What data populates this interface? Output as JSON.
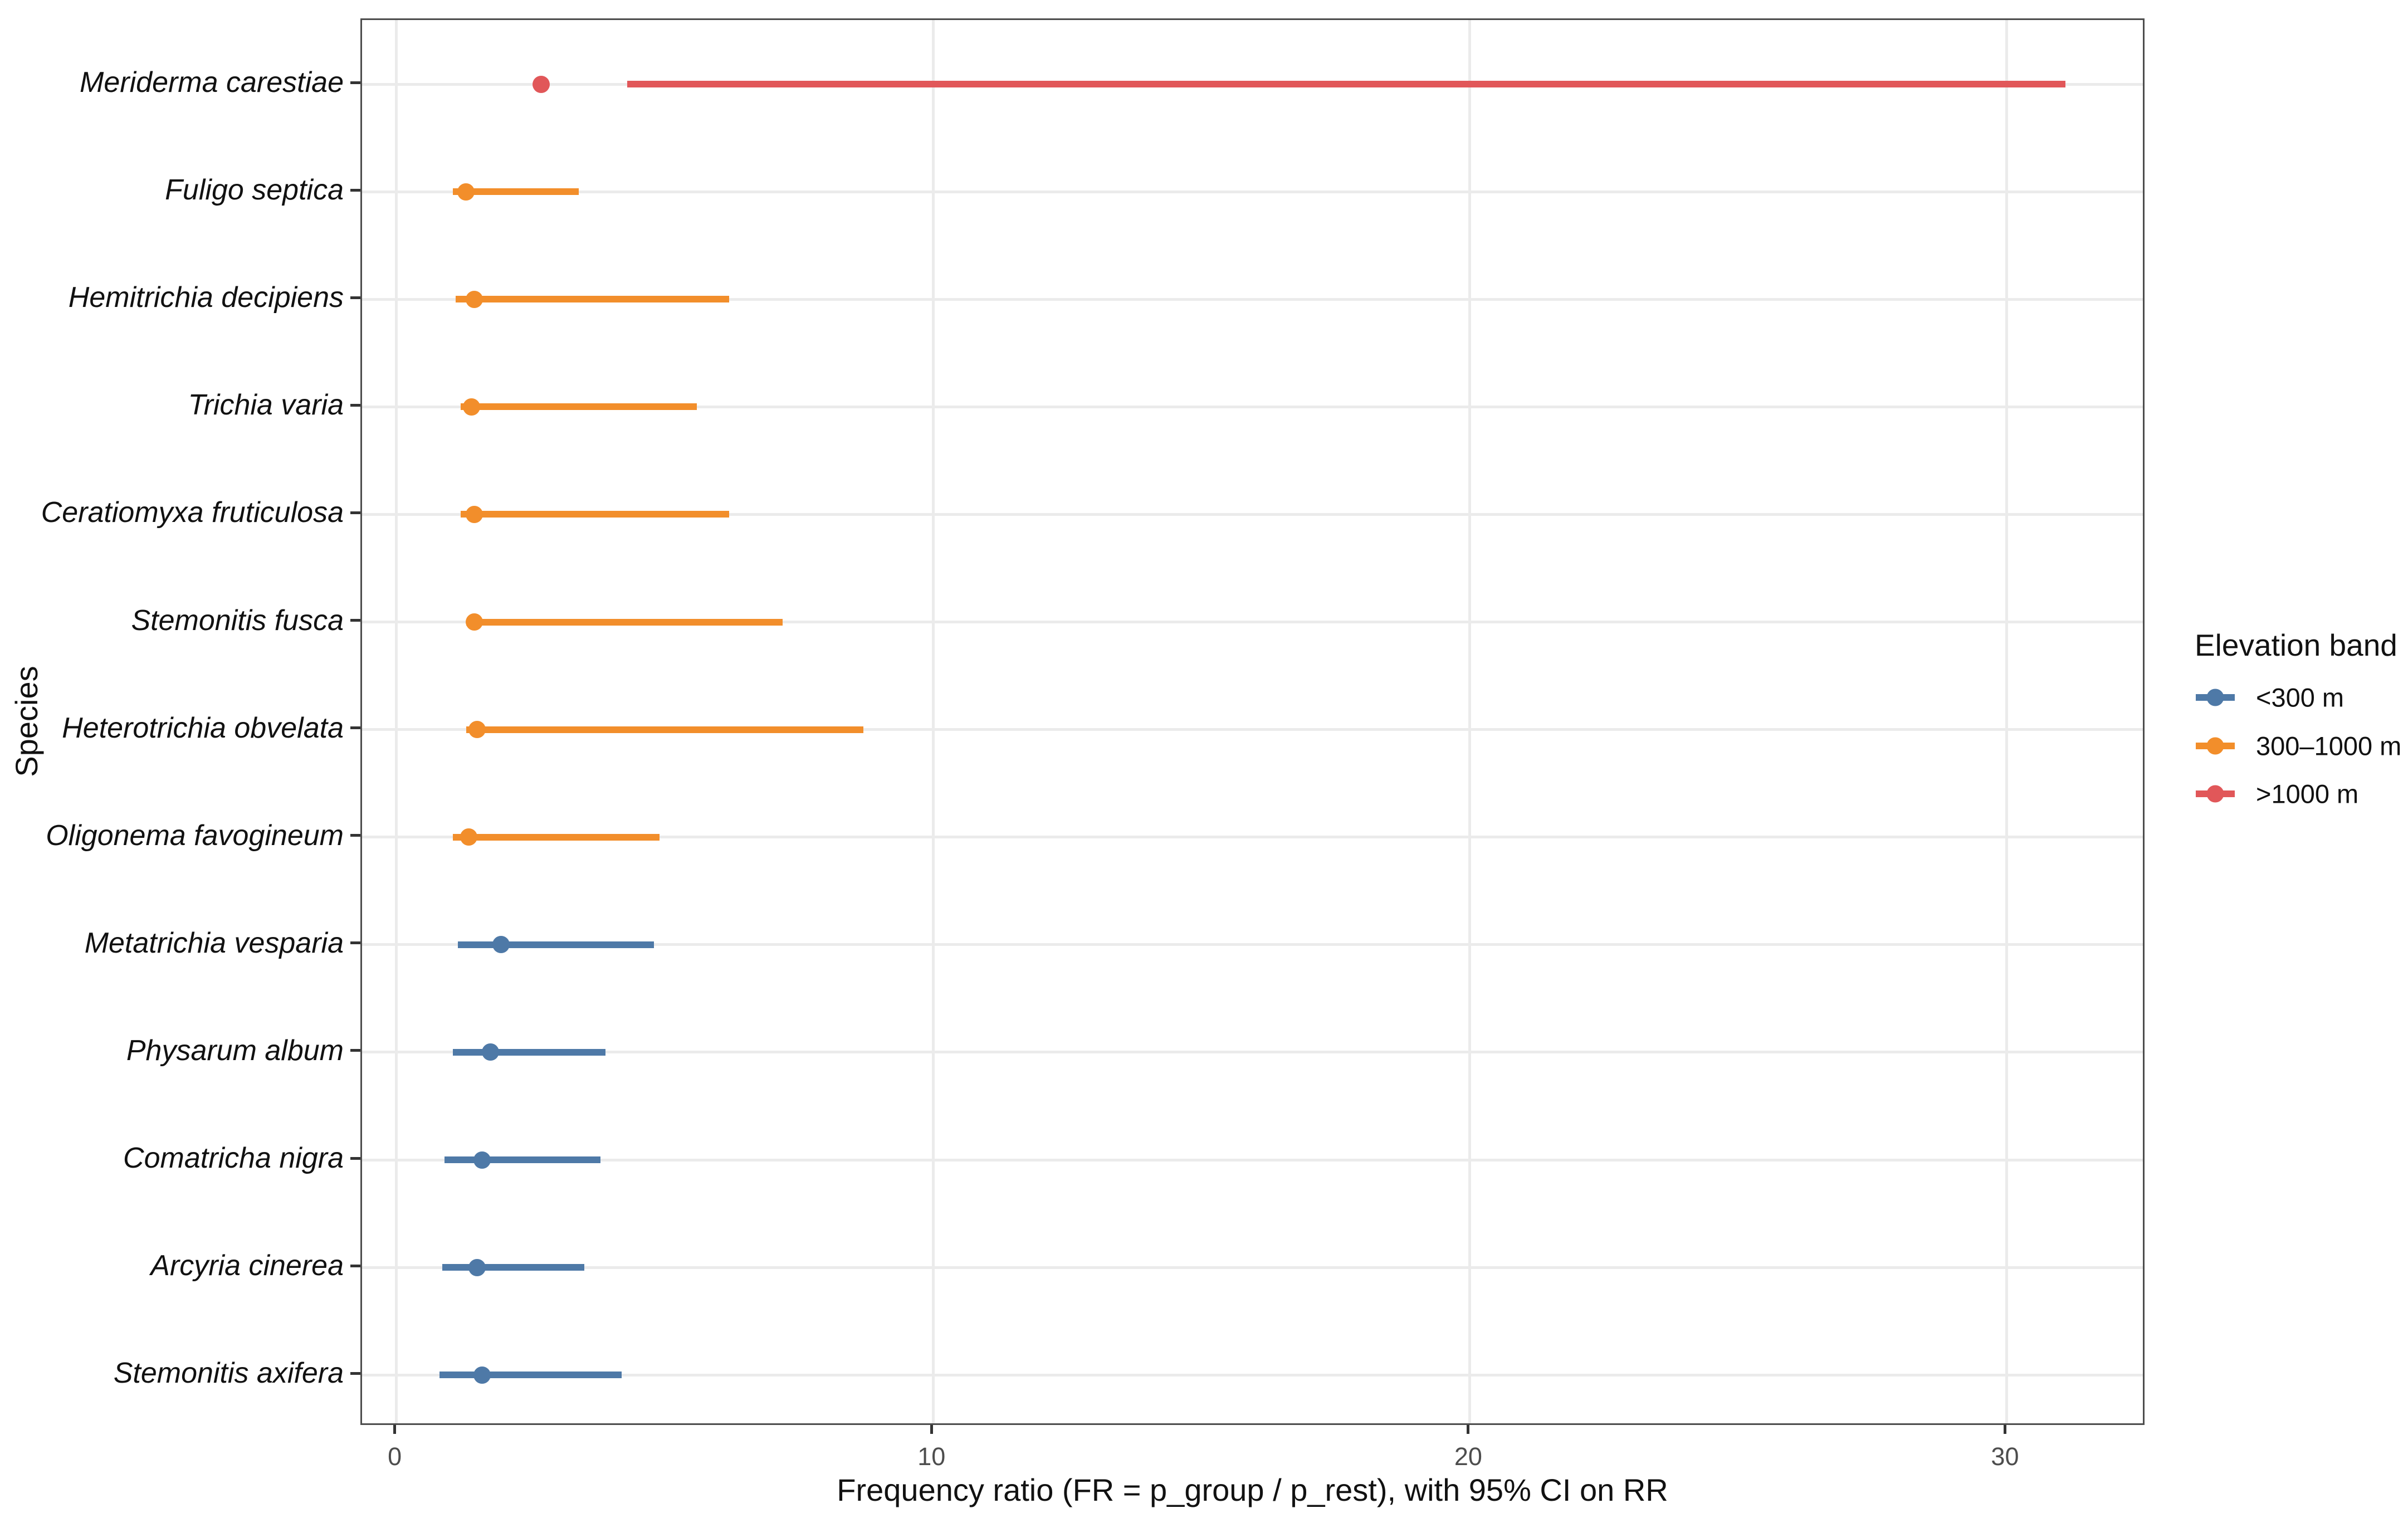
{
  "chart_data": {
    "type": "scatter",
    "subtype": "pointrange-forest",
    "title": "",
    "xlabel": "Frequency ratio (FR = p_group / p_rest), with 95% CI on RR",
    "ylabel": "Species",
    "xlim": [
      -0.64,
      32.6
    ],
    "xticks": [
      0,
      10,
      20,
      30
    ],
    "grid": "major-only",
    "legend_position": "right",
    "rows": [
      {
        "species": "Meriderma carestiae",
        "band": ">1000 m",
        "fr": 2.7,
        "ci_low": 4.3,
        "ci_high": 31.1
      },
      {
        "species": "Fuligo septica",
        "band": "300–1000 m",
        "fr": 1.3,
        "ci_low": 1.05,
        "ci_high": 3.4
      },
      {
        "species": "Hemitrichia decipiens",
        "band": "300–1000 m",
        "fr": 1.45,
        "ci_low": 1.1,
        "ci_high": 6.2
      },
      {
        "species": "Trichia varia",
        "band": "300–1000 m",
        "fr": 1.4,
        "ci_low": 1.2,
        "ci_high": 5.6
      },
      {
        "species": "Ceratiomyxa fruticulosa",
        "band": "300–1000 m",
        "fr": 1.45,
        "ci_low": 1.2,
        "ci_high": 6.2
      },
      {
        "species": "Stemonitis fusca",
        "band": "300–1000 m",
        "fr": 1.45,
        "ci_low": 1.3,
        "ci_high": 7.2
      },
      {
        "species": "Heterotrichia obvelata",
        "band": "300–1000 m",
        "fr": 1.5,
        "ci_low": 1.3,
        "ci_high": 8.7
      },
      {
        "species": "Oligonema favogineum",
        "band": "300–1000 m",
        "fr": 1.35,
        "ci_low": 1.05,
        "ci_high": 4.9
      },
      {
        "species": "Metatrichia vesparia",
        "band": "<300 m",
        "fr": 1.95,
        "ci_low": 1.15,
        "ci_high": 4.8
      },
      {
        "species": "Physarum album",
        "band": "<300 m",
        "fr": 1.75,
        "ci_low": 1.05,
        "ci_high": 3.9
      },
      {
        "species": "Comatricha nigra",
        "band": "<300 m",
        "fr": 1.6,
        "ci_low": 0.9,
        "ci_high": 3.8
      },
      {
        "species": "Arcyria cinerea",
        "band": "<300 m",
        "fr": 1.5,
        "ci_low": 0.85,
        "ci_high": 3.5
      },
      {
        "species": "Stemonitis axifera",
        "band": "<300 m",
        "fr": 1.6,
        "ci_low": 0.8,
        "ci_high": 4.2
      }
    ]
  },
  "axes": {
    "x_title": "Frequency ratio (FR = p_group / p_rest), with 95% CI on RR",
    "y_title": "Species",
    "x_tick_labels": [
      "0",
      "10",
      "20",
      "30"
    ]
  },
  "legend": {
    "title": "Elevation band",
    "items": [
      {
        "label": "<300 m",
        "color": "#4E79A7"
      },
      {
        "label": "300–1000 m",
        "color": "#F28E2B"
      },
      {
        "label": ">1000 m",
        "color": "#E15759"
      }
    ]
  },
  "colors": {
    "band_lt300": "#4E79A7",
    "band_300_1000": "#F28E2B",
    "band_gt1000": "#E15759",
    "gridline": "#EBEBEB",
    "panel_border": "#4D4D4D",
    "tick": "#333333",
    "tick_label": "#4D4D4D",
    "text": "#111111",
    "background": "#FFFFFF"
  }
}
